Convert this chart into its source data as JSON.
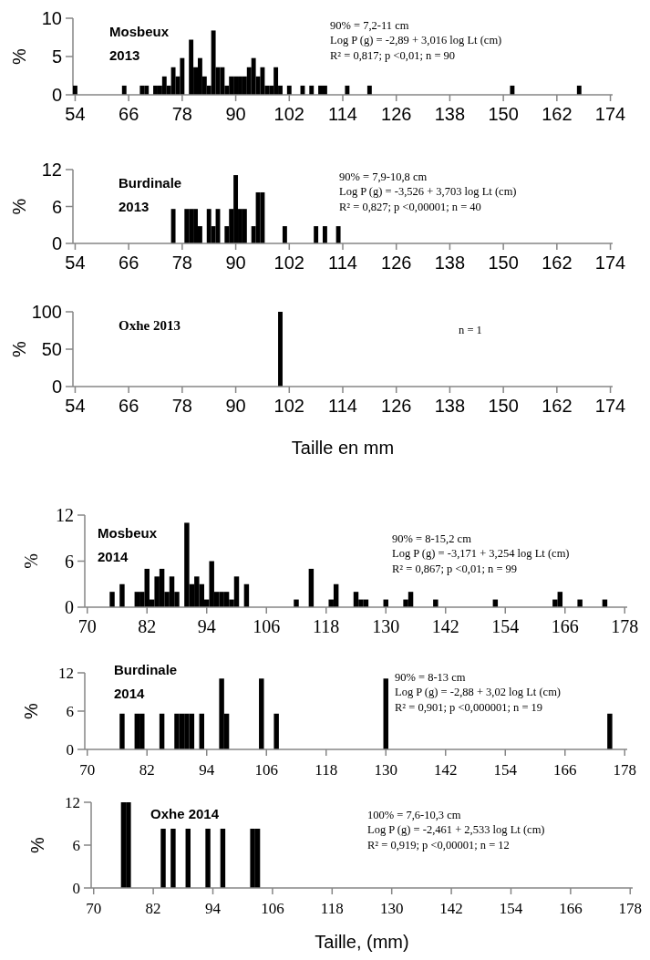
{
  "chart_data": [
    {
      "type": "bar",
      "title": "Mosbeux 2013",
      "ylabel": "%",
      "color": "#000000",
      "x": [
        54,
        65,
        69,
        70,
        72,
        73,
        74,
        75,
        76,
        77,
        78,
        80,
        81,
        82,
        83,
        84,
        85,
        86,
        87,
        88,
        89,
        90,
        91,
        92,
        93,
        94,
        95,
        96,
        97,
        98,
        99,
        100,
        102,
        105,
        107,
        109,
        110,
        115,
        120,
        152,
        167
      ],
      "values": [
        1.2,
        1.2,
        1.2,
        1.2,
        1.2,
        1.2,
        2.4,
        1.2,
        3.6,
        2.4,
        4.8,
        7.2,
        3.6,
        4.8,
        2.4,
        1.2,
        8.4,
        3.6,
        3.6,
        1.2,
        2.4,
        2.4,
        2.4,
        2.4,
        3.6,
        4.8,
        2.4,
        3.6,
        1.2,
        1.2,
        3.6,
        1.2,
        1.2,
        1.2,
        1.2,
        1.2,
        1.2,
        1.2,
        1.2,
        1.2,
        1.2
      ],
      "xlim": [
        53.5,
        174.5
      ],
      "xticks": [
        54,
        66,
        78,
        90,
        102,
        114,
        126,
        138,
        150,
        162,
        174
      ],
      "ylim": [
        0,
        10
      ],
      "yticks": [
        0,
        5,
        10
      ],
      "annotations": [
        "90% =  7,2-11 cm",
        "Log P (g) = -2,89 + 3,016 log Lt (cm)",
        "R² = 0,817; p <0,01; n = 90"
      ]
    },
    {
      "type": "bar",
      "title": "Burdinale 2013",
      "ylabel": "%",
      "color": "#000000",
      "x": [
        76,
        79,
        80,
        81,
        82,
        84,
        85,
        86,
        88,
        89,
        90,
        91,
        92,
        94,
        95,
        96,
        101,
        108,
        110,
        113
      ],
      "values": [
        5.6,
        5.6,
        5.6,
        5.6,
        2.8,
        5.6,
        2.8,
        5.6,
        2.8,
        5.6,
        11.1,
        5.6,
        5.6,
        2.8,
        8.3,
        8.3,
        2.8,
        2.8,
        2.8,
        2.8
      ],
      "xlim": [
        53.5,
        174.5
      ],
      "xticks": [
        54,
        66,
        78,
        90,
        102,
        114,
        126,
        138,
        150,
        162,
        174
      ],
      "ylim": [
        0,
        12
      ],
      "yticks": [
        0,
        6,
        12
      ],
      "annotations": [
        "90% =  7,9-10,8 cm",
        "Log P (g) = -3,526 + 3,703 log Lt (cm)",
        "R² = 0,827; p <0,00001; n = 40"
      ]
    },
    {
      "type": "bar",
      "title": "Oxhe 2013",
      "ylabel": "%",
      "xlabel": "Taille en mm",
      "color": "#000000",
      "x": [
        100
      ],
      "values": [
        100
      ],
      "xlim": [
        53.5,
        174.5
      ],
      "xticks": [
        54,
        66,
        78,
        90,
        102,
        114,
        126,
        138,
        150,
        162,
        174
      ],
      "ylim": [
        0,
        100
      ],
      "yticks": [
        0,
        50,
        100
      ],
      "annotations": [
        "n = 1"
      ]
    },
    {
      "type": "bar",
      "title": "Mosbeux 2014",
      "ylabel": "%",
      "color": "#000000",
      "x": [
        75,
        77,
        80,
        81,
        82,
        83,
        84,
        85,
        86,
        87,
        88,
        90,
        91,
        92,
        93,
        94,
        95,
        96,
        97,
        98,
        99,
        100,
        102,
        112,
        115,
        119,
        120,
        124,
        125,
        126,
        130,
        134,
        135,
        140,
        152,
        164,
        165,
        169,
        174
      ],
      "values": [
        2,
        3,
        2,
        2,
        5,
        1,
        4,
        5,
        2,
        4,
        2,
        11,
        3,
        4,
        3,
        1,
        6,
        2,
        2,
        2,
        1,
        4,
        3,
        1,
        5,
        1,
        3,
        2,
        1,
        1,
        1,
        1,
        2,
        1,
        1,
        1,
        2,
        1,
        1
      ],
      "xlim": [
        69.5,
        178.5
      ],
      "xticks": [
        70,
        82,
        94,
        106,
        118,
        130,
        142,
        154,
        166,
        178
      ],
      "ylim": [
        0,
        12
      ],
      "yticks": [
        0,
        6,
        12
      ],
      "annotations": [
        "90% =  8-15,2 cm",
        "Log P (g) = -3,171 + 3,254 log Lt (cm)",
        "R² = 0,867; p <0,01; n = 99"
      ]
    },
    {
      "type": "bar",
      "title": "Burdinale 2014",
      "ylabel": "%",
      "color": "#000000",
      "x": [
        77,
        80,
        81,
        85,
        88,
        89,
        90,
        91,
        93,
        97,
        98,
        105,
        108,
        130,
        175
      ],
      "values": [
        5.6,
        5.6,
        5.6,
        5.6,
        5.6,
        5.6,
        5.6,
        5.6,
        5.6,
        11.1,
        5.6,
        11.1,
        5.6,
        11.1,
        5.6
      ],
      "xlim": [
        69.5,
        178.5
      ],
      "xticks": [
        70,
        82,
        94,
        106,
        118,
        130,
        142,
        154,
        166,
        178
      ],
      "ylim": [
        0,
        12
      ],
      "yticks": [
        0,
        6,
        12
      ],
      "annotations": [
        "90% =  8-13 cm",
        "Log P (g) = -2,88 + 3,02 log Lt (cm)",
        "R² = 0,901; p <0,000001; n = 19"
      ]
    },
    {
      "type": "bar",
      "title": "Oxhe 2014",
      "ylabel": "%",
      "xlabel": "Taille, (mm)",
      "color": "#000000",
      "x": [
        76,
        77,
        84,
        86,
        89,
        93,
        96,
        102,
        103
      ],
      "values": [
        12,
        12,
        8.3,
        8.3,
        8.3,
        8.3,
        8.3,
        8.3,
        8.3
      ],
      "xlim": [
        69.5,
        178.5
      ],
      "xticks": [
        70,
        82,
        94,
        106,
        118,
        130,
        142,
        154,
        166,
        178
      ],
      "ylim": [
        0,
        12
      ],
      "yticks": [
        0,
        6,
        12
      ],
      "annotations": [
        "100% =  7,6-10,3 cm",
        "Log P (g) = -2,461 + 2,533 log Lt (cm)",
        "R² = 0,919; p <0,00001; n = 12"
      ]
    }
  ]
}
